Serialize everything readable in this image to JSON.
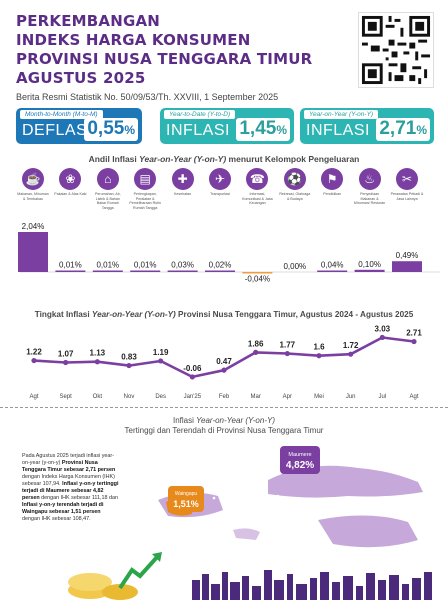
{
  "header": {
    "title_lines": [
      "PERKEMBANGAN",
      "INDEKS HARGA KONSUMEN",
      "PROVINSI NUSA TENGGARA TIMUR",
      "AGUSTUS 2025"
    ],
    "subtitle": "Berita Resmi Statistik No. 50/09/53/Th. XXVIII, 1 September 2025"
  },
  "cards": [
    {
      "label": "Month-to-Month (M-to-M)",
      "kind": "DEFLASI",
      "value": "0,55",
      "unit": "%"
    },
    {
      "label": "Year-to-Date (Y-to-D)",
      "kind": "INFLASI",
      "value": "1,45",
      "unit": "%"
    },
    {
      "label": "Year-on-Year (Y-on-Y)",
      "kind": "INFLASI",
      "value": "2,71",
      "unit": "%"
    }
  ],
  "section1": {
    "title_prefix": "Andil Inflasi ",
    "title_italic": "Year-on-Year (Y-on-Y)",
    "title_suffix": " menurut Kelompok Pengeluaran"
  },
  "section2": {
    "title_prefix": "Tingkat Inflasi ",
    "title_italic": "Year-on-Year (Y-on-Y)",
    "title_suffix": " Provinsi Nusa Tenggara Timur, Agustus 2024 - Agustus 2025"
  },
  "section3": {
    "line1_prefix": "Inflasi ",
    "line1_italic": "Year-on-Year (Y-on-Y)",
    "line2": "Tertinggi dan Terendah di Provinsi Nusa Tenggara Timur"
  },
  "paragraph": {
    "p1": "Pada Agustus 2025 terjadi inflasi year-on-year (y-on-y) ",
    "p2": "Provinsi Nusa Tenggara Timur sebesar 2,71 persen",
    "p3": " dengan Indeks Harga Konsumen (IHK) sebesar 107,94. ",
    "p4": "Inflasi y-on-y tertinggi terjadi di Maumere sebesar 4,82 persen",
    "p5": " dengan IHK sebesar 111,18 dan ",
    "p6": "Inflasi y-on-y terendah terjadi di Waingapu sebesar 1,51 persen",
    "p7": " dengan IHK sebesar 108,47."
  },
  "map": {
    "high_city": "Maumere",
    "high_value": "4,82%",
    "low_city": "Waingapu",
    "low_value": "1,51%"
  },
  "icons": [
    "utensils",
    "shirt",
    "house",
    "sofa",
    "health",
    "car",
    "phone",
    "ball",
    "grad-cap",
    "dish",
    "scissors"
  ],
  "chart_data": [
    {
      "type": "bar",
      "title": "Andil Inflasi Year-on-Year (Y-on-Y) menurut Kelompok Pengeluaran",
      "categories": [
        "Makanan, Minuman & Tembakau",
        "Pakaian & Alas Kaki",
        "Perumahan, Air, Listrik & Bahan Bakar Rumah Tangga",
        "Perlengkapan, Peralatan & Pemeliharaan Rutin Rumah Tangga",
        "Kesehatan",
        "Transportasi",
        "Informasi, Komunikasi & Jasa Keuangan",
        "Rekreasi, Olahraga & Budaya",
        "Pendidikan",
        "Penyediaan Makanan & Minuman/ Restoran",
        "Perawatan Pribadi & Jasa Lainnya"
      ],
      "values": [
        2.04,
        0.01,
        0.01,
        0.01,
        0.03,
        0.02,
        -0.04,
        0.0,
        0.04,
        0.1,
        0.49
      ],
      "value_labels": [
        "2,04%",
        "0,01%",
        "0,01%",
        "0,01%",
        "0,03%",
        "0,02%",
        "-0,04%",
        "0,00%",
        "0,04%",
        "0,10%",
        "0,49%"
      ],
      "colors": {
        "positive": "#7b3fa2",
        "negative": "#f39c3c"
      }
    },
    {
      "type": "line",
      "title": "Tingkat Inflasi Year-on-Year (Y-on-Y) Provinsi Nusa Tenggara Timur, Agustus 2024 - Agustus 2025",
      "categories": [
        "Agt",
        "Sept",
        "Okt",
        "Nov",
        "Des",
        "Jan'25",
        "Feb",
        "Mar",
        "Apr",
        "Mei",
        "Jun",
        "Jul",
        "Agt"
      ],
      "values": [
        1.22,
        1.07,
        1.13,
        0.83,
        1.19,
        -0.06,
        0.47,
        1.86,
        1.77,
        1.6,
        1.72,
        3.03,
        2.71
      ],
      "value_labels": [
        "1.22",
        "1.07",
        "1.13",
        "0.83",
        "1.19",
        "-0.06",
        "0.47",
        "1.86",
        "1.77",
        "1.6",
        "1.72",
        "3.03",
        "2.71"
      ],
      "colors": {
        "line": "#7b3fa2"
      }
    }
  ]
}
